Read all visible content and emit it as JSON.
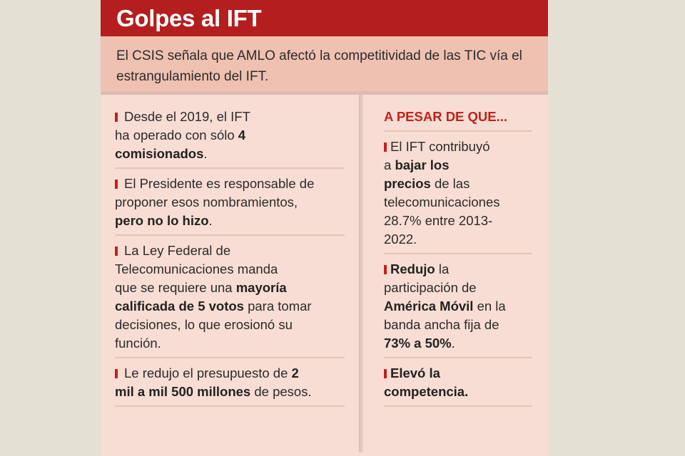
{
  "title": "Golpes al IFT",
  "intro": "El CSIS señala que AMLO afectó la competitividad de las TIC vía el estrangulamiento del IFT.",
  "left_items": [
    {
      "l1": "Desde el 2019, el IFT",
      "l2a": "ha operado con sólo ",
      "l2b": "4",
      "l3": "comisionados",
      "l3b": "."
    },
    {
      "l1": "El Presidente es responsable de",
      "l2": "proponer esos nombramientos,",
      "l3": "pero no lo hizo",
      "l3b": "."
    },
    {
      "l1": "La Ley Federal de",
      "l2": "Telecomunicaciones manda",
      "l3a": "que se requiere una ",
      "l3b": "mayoría",
      "l4a": "calificada de 5 votos",
      "l4b": " para tomar",
      "l5": "decisiones, lo que erosionó su",
      "l6": "función."
    },
    {
      "l1a": "Le redujo el presupuesto de ",
      "l1b": "2",
      "l2a": "mil a mil 500 millones",
      "l2b": " de pesos."
    }
  ],
  "right_heading": "A PESAR DE QUE...",
  "right_items": [
    {
      "l1": "El IFT contribuyó",
      "l2a": "a ",
      "l2b": "bajar los",
      "l3a": "precios",
      "l3b": " de las",
      "l4": "telecomunicaciones",
      "l5": "28.7% entre 2013-",
      "l6": "2022."
    },
    {
      "l1a": "Redujo",
      "l1b": " la",
      "l2": "participación de",
      "l3a": "América Móvil",
      "l3b": " en la",
      "l4": "banda ancha fija de",
      "l5a": "73% a 50%",
      "l5b": "."
    },
    {
      "l1": "Elevó la",
      "l2": "competencia."
    }
  ],
  "colors": {
    "title_bg": "#b41e1e",
    "intro_bg": "#efc1b1",
    "card_bg": "#f7ddd3",
    "accent": "#c0231c"
  }
}
